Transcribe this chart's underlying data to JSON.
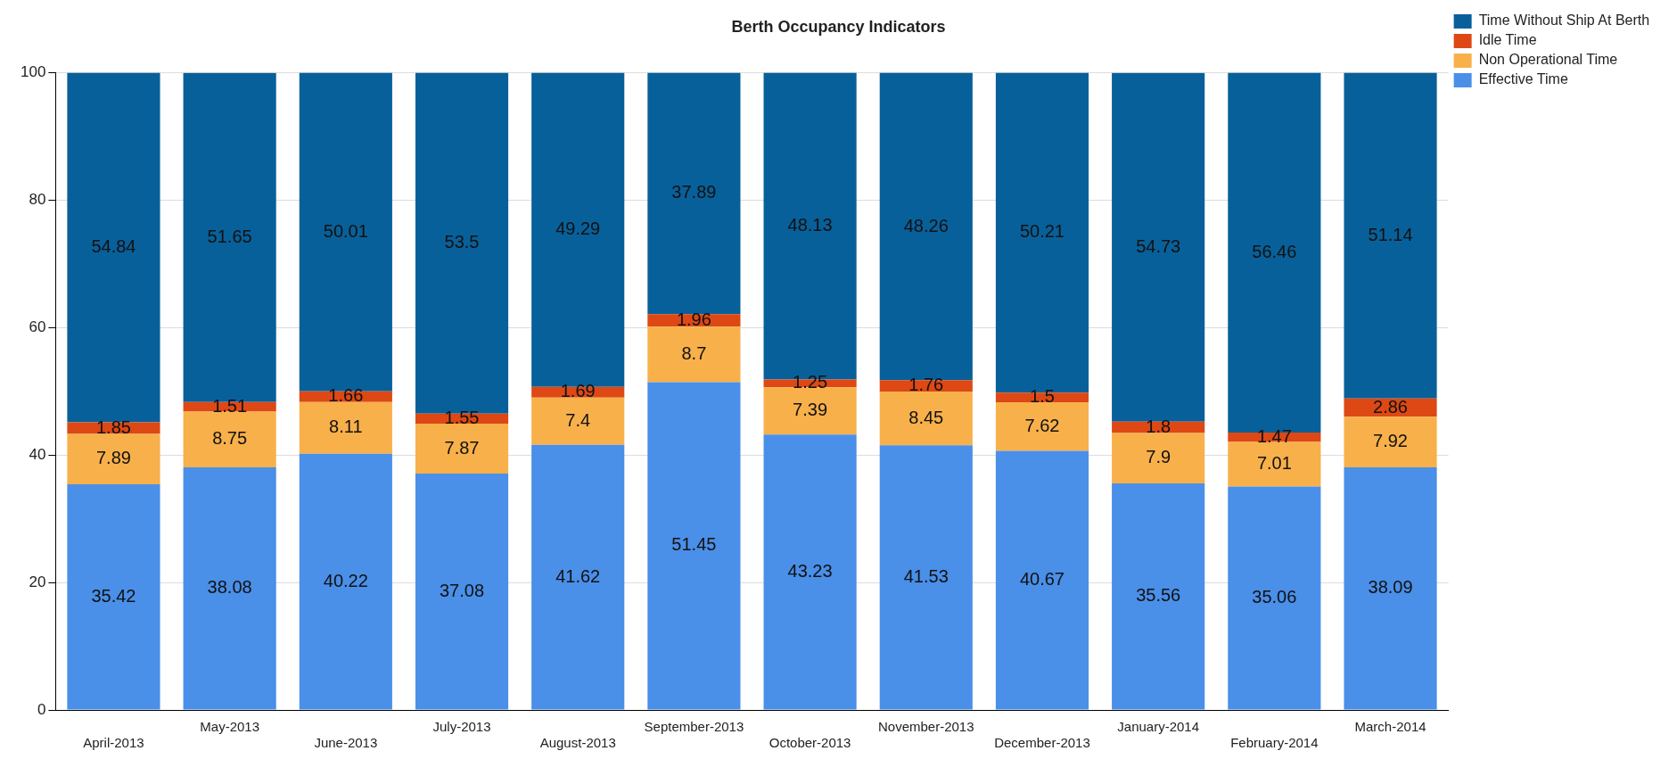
{
  "chart_data": {
    "type": "bar",
    "title": "Berth Occupancy Indicators",
    "categories": [
      "April-2013",
      "May-2013",
      "June-2013",
      "July-2013",
      "August-2013",
      "September-2013",
      "October-2013",
      "November-2013",
      "December-2013",
      "January-2014",
      "February-2014",
      "March-2014"
    ],
    "stacked": true,
    "series": [
      {
        "name": "Effective Time",
        "color": "#4a8fe8",
        "values": [
          35.42,
          38.08,
          40.22,
          37.08,
          41.62,
          51.45,
          43.23,
          41.53,
          40.67,
          35.56,
          35.06,
          38.09
        ]
      },
      {
        "name": "Non Operational Time",
        "color": "#f8b04a",
        "values": [
          7.89,
          8.75,
          8.11,
          7.87,
          7.4,
          8.7,
          7.39,
          8.45,
          7.62,
          7.9,
          7.01,
          7.92
        ]
      },
      {
        "name": "Idle Time",
        "color": "#dd4814",
        "values": [
          1.85,
          1.51,
          1.66,
          1.55,
          1.69,
          1.96,
          1.25,
          1.76,
          1.5,
          1.8,
          1.47,
          2.86
        ]
      },
      {
        "name": "Time Without Ship At Berth",
        "color": "#08609a",
        "values": [
          54.84,
          51.65,
          50.01,
          53.5,
          49.29,
          37.89,
          48.13,
          48.26,
          50.21,
          54.73,
          56.46,
          51.14
        ]
      }
    ],
    "ylim": [
      0,
      100
    ],
    "yticks": [
      0,
      20,
      40,
      60,
      80,
      100
    ],
    "grid": "y",
    "legend": "top right",
    "data_labels": true
  }
}
